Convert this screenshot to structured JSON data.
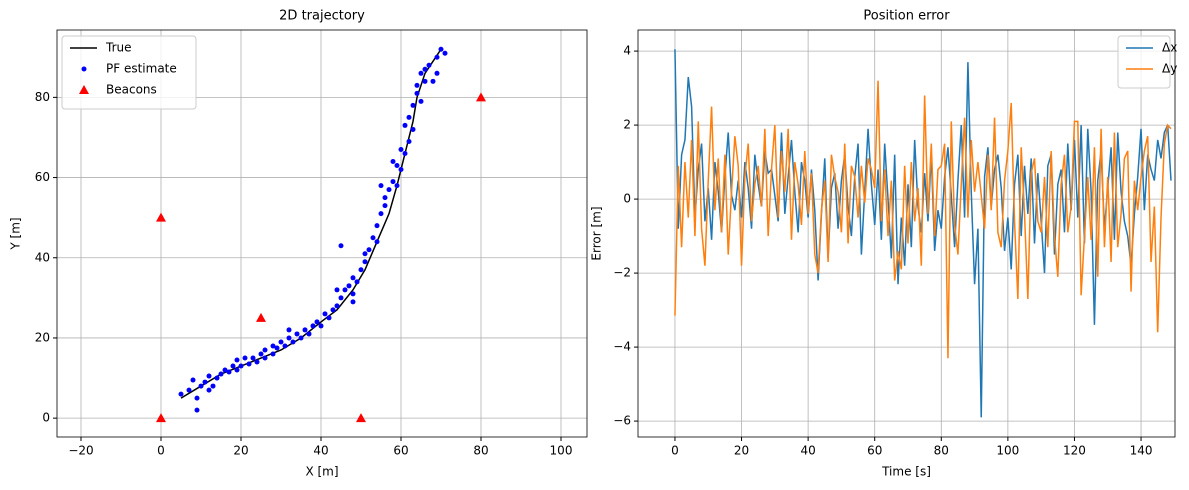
{
  "chart_data": [
    {
      "type": "scatter",
      "title": "2D trajectory",
      "x_label": "X [m]",
      "y_label": "Y [m]",
      "xlim": [
        -26,
        106.5
      ],
      "ylim": [
        -4.7,
        96.8
      ],
      "xticks": [
        {
          "value": -20,
          "label": "−20"
        },
        0,
        20,
        40,
        60,
        80,
        100
      ],
      "yticks": [
        0,
        20,
        40,
        60,
        80
      ],
      "grid": true,
      "legend": "upper left",
      "series": [
        {
          "name": "True",
          "color": "black",
          "marker": "line",
          "x": [
            5,
            10,
            15,
            20,
            25,
            30,
            35,
            40,
            44,
            48,
            51,
            54,
            57,
            59,
            61,
            63,
            64,
            66,
            68,
            70
          ],
          "values": [
            5,
            8,
            11,
            13,
            15,
            17,
            20,
            24,
            27,
            32,
            37,
            44,
            51,
            58,
            66,
            74,
            80,
            86,
            89,
            92
          ]
        },
        {
          "name": "PF estimate",
          "color": "blue",
          "marker": "dot",
          "x": [
            5,
            7,
            8,
            9,
            9,
            10,
            11,
            12,
            12,
            13,
            14,
            15,
            16,
            17,
            18,
            19,
            19,
            20,
            21,
            22,
            23,
            24,
            25,
            26,
            26,
            28,
            28,
            29,
            30,
            31,
            32,
            32,
            33,
            34,
            35,
            36,
            37,
            38,
            39,
            40,
            41,
            42,
            43,
            44,
            45,
            45,
            46,
            47,
            48,
            48,
            49,
            50,
            51,
            51,
            52,
            53,
            54,
            54,
            55,
            56,
            56,
            57,
            58,
            59,
            59,
            60,
            60,
            61,
            61,
            62,
            62,
            63,
            63,
            64,
            64,
            65,
            65,
            66,
            66,
            67,
            68,
            69,
            69,
            70,
            71,
            48,
            44,
            55,
            58
          ],
          "values": [
            6,
            7,
            9.5,
            2,
            5,
            8,
            9,
            7,
            10.5,
            8,
            10,
            11,
            12,
            11.5,
            13,
            12,
            14.5,
            13,
            15,
            13.5,
            15,
            14,
            16,
            15,
            17,
            16,
            18,
            17.5,
            19,
            18,
            20,
            22,
            19,
            21,
            20,
            22,
            21,
            23,
            24,
            23,
            26,
            25,
            27,
            28,
            30,
            43,
            32,
            33,
            31,
            35,
            34,
            37,
            39,
            41,
            42,
            45,
            44,
            48,
            51,
            55,
            53,
            57,
            59,
            58,
            63,
            62,
            67,
            66,
            73,
            69,
            75,
            72,
            78,
            81,
            83,
            79,
            86,
            84,
            87,
            88,
            84,
            86,
            90,
            92,
            91,
            29,
            32,
            58,
            64
          ]
        },
        {
          "name": "Beacons",
          "color": "red",
          "marker": "triangle",
          "x": [
            0,
            50,
            0,
            25,
            80
          ],
          "values": [
            0,
            0,
            50,
            25,
            80
          ]
        }
      ]
    },
    {
      "type": "line",
      "title": "Position error",
      "x_label": "Time [s]",
      "y_label": "Error [m]",
      "xlim": [
        -11.1,
        150.2
      ],
      "ylim": [
        -6.43,
        4.57
      ],
      "xticks": [
        0,
        20,
        40,
        60,
        80,
        100,
        120,
        140
      ],
      "yticks": [
        {
          "value": -6,
          "label": "−6"
        },
        {
          "value": -4,
          "label": "−4"
        },
        {
          "value": -2,
          "label": "−2"
        },
        0,
        2,
        4
      ],
      "grid": true,
      "legend": "upper right",
      "x": [
        0,
        1,
        2,
        3,
        4,
        5,
        6,
        7,
        8,
        9,
        10,
        11,
        12,
        13,
        14,
        15,
        16,
        17,
        18,
        19,
        20,
        21,
        22,
        23,
        24,
        25,
        26,
        27,
        28,
        29,
        30,
        31,
        32,
        33,
        34,
        35,
        36,
        37,
        38,
        39,
        40,
        41,
        42,
        43,
        44,
        45,
        46,
        47,
        48,
        49,
        50,
        51,
        52,
        53,
        54,
        55,
        56,
        57,
        58,
        59,
        60,
        61,
        62,
        63,
        64,
        65,
        66,
        67,
        68,
        69,
        70,
        71,
        72,
        73,
        74,
        75,
        76,
        77,
        78,
        79,
        80,
        81,
        82,
        83,
        84,
        85,
        86,
        87,
        88,
        89,
        90,
        91,
        92,
        93,
        94,
        95,
        96,
        97,
        98,
        99,
        100,
        101,
        102,
        103,
        104,
        105,
        106,
        107,
        108,
        109,
        110,
        111,
        112,
        113,
        114,
        115,
        116,
        117,
        118,
        119,
        120,
        121,
        122,
        123,
        124,
        125,
        126,
        127,
        128,
        129,
        130,
        131,
        132,
        133,
        134,
        135,
        136,
        137,
        138,
        139,
        140,
        141,
        142,
        143,
        144,
        145,
        146,
        147,
        148,
        149
      ],
      "series": [
        {
          "name": "Δx",
          "color": "#1f77b4",
          "values": [
            4.05,
            -0.8,
            1.2,
            1.6,
            3.3,
            2.5,
            -0.5,
            0.8,
            1.5,
            -0.6,
            0.3,
            -1.1,
            1.0,
            0.2,
            -0.9,
            0.6,
            1.8,
            0.1,
            -0.3,
            0.5,
            -0.5,
            1.0,
            0.3,
            -0.8,
            1.2,
            0.4,
            -0.2,
            1.3,
            0.7,
            0.8,
            0.1,
            -0.6,
            1.8,
            -0.4,
            0.6,
            1.6,
            0.2,
            -0.9,
            1.0,
            0.5,
            -0.5,
            0.8,
            -0.3,
            -2.2,
            -0.4,
            1.1,
            -1.6,
            0.3,
            0.7,
            -0.8,
            0.5,
            1.2,
            -0.2,
            -1.0,
            0.6,
            1.5,
            -1.5,
            0.2,
            1.9,
            0.4,
            -0.7,
            0.8,
            -1.1,
            1.5,
            0.0,
            -1.6,
            1.2,
            -2.3,
            -0.5,
            -1.8,
            0.4,
            -1.3,
            1.6,
            -0.2,
            -0.9,
            0.7,
            -0.6,
            1.2,
            -1.4,
            -0.3,
            -0.8,
            0.6,
            1.4,
            0.1,
            -1.3,
            0.5,
            2.0,
            -0.5,
            3.7,
            0.2,
            -2.3,
            -0.8,
            -5.9,
            0.6,
            1.4,
            -0.2,
            0.8,
            1.2,
            0.3,
            -1.4,
            -0.5,
            -1.9,
            0.4,
            1.2,
            -1.0,
            0.9,
            -0.4,
            1.1,
            -1.2,
            0.7,
            -0.6,
            -2.0,
            0.9,
            1.2,
            -1.5,
            0.4,
            0.8,
            -0.9,
            1.5,
            -0.3,
            1.6,
            -0.5,
            2.0,
            -1.2,
            1.9,
            0.2,
            -3.4,
            0.5,
            1.3,
            -0.8,
            0.3,
            1.4,
            -1.1,
            1.8,
            0.2,
            -0.6,
            -1.0,
            -1.8,
            -0.4,
            0.6,
            1.9,
            -0.3,
            1.2,
            0.8,
            0.5,
            1.6,
            1.1,
            1.8,
            2.0,
            0.5
          ]
        },
        {
          "name": "Δy",
          "color": "#ff7f0e",
          "values": [
            -3.15,
            0.9,
            -1.3,
            1.0,
            -0.5,
            1.6,
            -1.0,
            2.1,
            -0.8,
            -1.8,
            0.5,
            2.5,
            -0.3,
            1.1,
            -0.9,
            1.2,
            -1.5,
            0.2,
            1.7,
            0.9,
            -1.8,
            0.6,
            1.5,
            -0.6,
            0.4,
            0.9,
            -0.2,
            1.9,
            -1.0,
            0.8,
            2.0,
            -0.5,
            1.3,
            0.2,
            1.9,
            -1.1,
            1.0,
            0.4,
            -0.7,
            1.3,
            -0.4,
            0.7,
            -1.5,
            -2.0,
            -0.3,
            0.5,
            -1.7,
            1.2,
            0.6,
            0.2,
            -0.9,
            1.5,
            -1.2,
            0.9,
            0.6,
            -0.5,
            0.9,
            -0.1,
            1.1,
            0.8,
            0.3,
            3.2,
            -0.6,
            0.8,
            -1.0,
            0.5,
            -2.2,
            -1.4,
            -1.9,
            0.9,
            -1.2,
            1.0,
            -0.6,
            0.3,
            -1.8,
            2.8,
            -0.4,
            1.5,
            -1.0,
            0.8,
            0.9,
            1.5,
            -4.3,
            2.1,
            -0.7,
            -1.5,
            0.4,
            2.2,
            -0.5,
            1.6,
            0.2,
            1.0,
            0.1,
            -0.8,
            1.2,
            -0.3,
            2.2,
            -0.9,
            -1.3,
            0.5,
            1.3,
            2.6,
            -0.6,
            -2.7,
            1.4,
            -0.4,
            -2.7,
            0.7,
            1.1,
            -0.6,
            -0.9,
            0.6,
            -1.3,
            1.3,
            -1.0,
            -2.1,
            0.4,
            1.2,
            -0.9,
            -0.2,
            2.1,
            2.1,
            -2.6,
            -1.0,
            0.6,
            -1.1,
            1.4,
            -2.1,
            1.9,
            -1.3,
            0.6,
            -1.7,
            1.8,
            -1.3,
            -0.4,
            1.1,
            1.3,
            -2.5,
            0.5,
            -0.3,
            0.6,
            1.3,
            1.7,
            -1.7,
            -0.2,
            -3.6,
            -0.5,
            1.5,
            2.0,
            1.9
          ]
        }
      ]
    }
  ]
}
